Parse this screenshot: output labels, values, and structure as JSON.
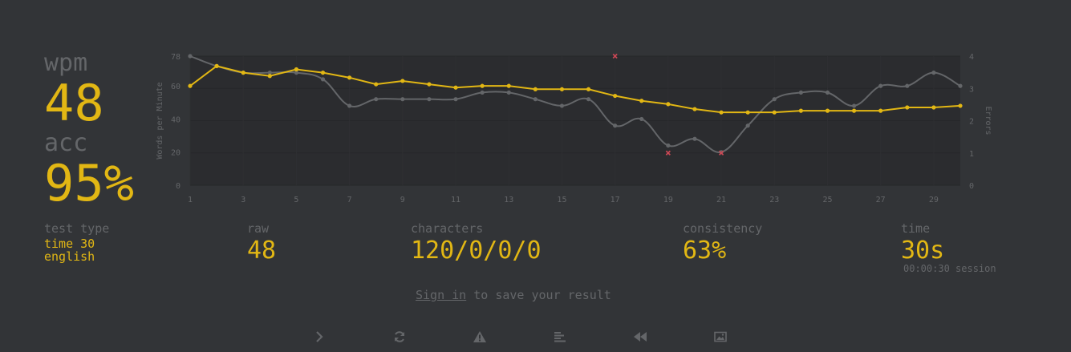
{
  "stats": {
    "wpm_label": "wpm",
    "wpm_value": "48",
    "acc_label": "acc",
    "acc_value": "95%"
  },
  "details": {
    "test_type_label": "test type",
    "test_type_line1": "time 30",
    "test_type_line2": "english",
    "raw_label": "raw",
    "raw_value": "48",
    "characters_label": "characters",
    "characters_value": "120/0/0/0",
    "consistency_label": "consistency",
    "consistency_value": "63%",
    "time_label": "time",
    "time_value": "30s",
    "session_text": "00:00:30 session"
  },
  "signin": {
    "link_text": "Sign in",
    "rest_text": "to save your result"
  },
  "buttons": [
    {
      "name": "next-test-button",
      "icon": "chevron-right-icon"
    },
    {
      "name": "restart-button",
      "icon": "refresh-icon"
    },
    {
      "name": "practice-missed-words-button",
      "icon": "warning-triangle-icon"
    },
    {
      "name": "toggle-word-history-button",
      "icon": "align-left-icon"
    },
    {
      "name": "watch-replay-button",
      "icon": "rewind-icon"
    },
    {
      "name": "save-screenshot-button",
      "icon": "image-icon"
    }
  ],
  "colors": {
    "background": "#323437",
    "accent": "#e2b714",
    "muted": "#646669",
    "error": "#ca4754"
  },
  "chart_data": {
    "type": "line",
    "ylabel": "Words per Minute",
    "y2label": "Errors",
    "x": [
      1,
      2,
      3,
      4,
      5,
      6,
      7,
      8,
      9,
      10,
      11,
      12,
      13,
      14,
      15,
      16,
      17,
      18,
      19,
      20,
      21,
      22,
      23,
      24,
      25,
      26,
      27,
      28,
      29,
      30
    ],
    "x_ticks": [
      1,
      3,
      5,
      7,
      9,
      11,
      13,
      15,
      17,
      19,
      21,
      23,
      25,
      27,
      29
    ],
    "ylim": [
      0,
      78
    ],
    "y_ticks": [
      0,
      20,
      40,
      60,
      78
    ],
    "y2lim": [
      0,
      4
    ],
    "y2_ticks": [
      0,
      1,
      2,
      3,
      4
    ],
    "grid": true,
    "series": [
      {
        "name": "raw",
        "color": "#646669",
        "smooth": true,
        "values": [
          78,
          72,
          68,
          68,
          68,
          64,
          48,
          52,
          52,
          52,
          52,
          56,
          56,
          52,
          48,
          52,
          36,
          40,
          24,
          28,
          20,
          36,
          52,
          56,
          56,
          48,
          60,
          60,
          68,
          60
        ]
      },
      {
        "name": "wpm",
        "color": "#e2b714",
        "smooth": false,
        "values": [
          60,
          72,
          68,
          66,
          70,
          68,
          65,
          61,
          63,
          61,
          59,
          60,
          60,
          58,
          58,
          58,
          54,
          51,
          49,
          46,
          44,
          44,
          44,
          45,
          45,
          45,
          45,
          47,
          47,
          48
        ]
      }
    ],
    "errors": {
      "color": "#ca4754",
      "x": [
        17,
        19,
        21
      ],
      "values": [
        4,
        1,
        1
      ]
    }
  }
}
